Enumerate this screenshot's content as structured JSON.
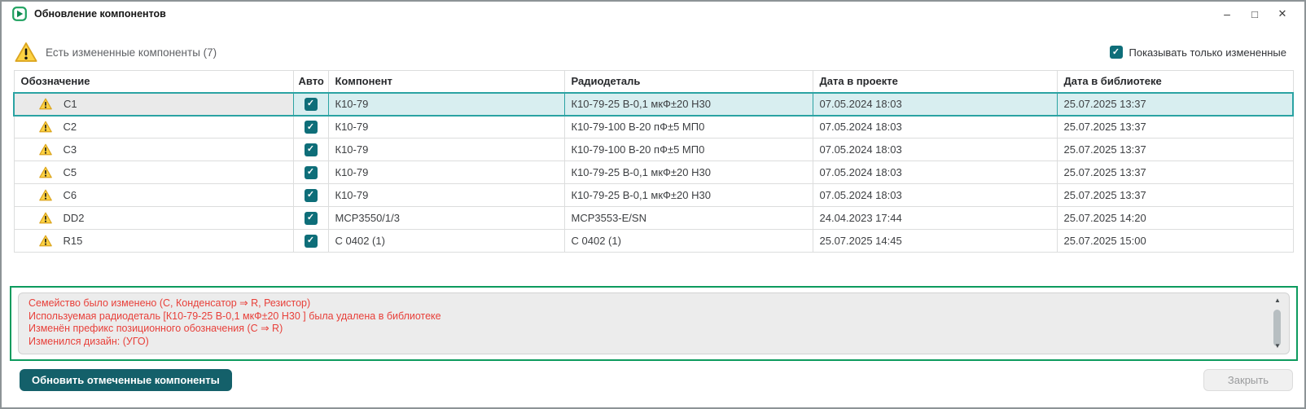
{
  "window": {
    "title": "Обновление компонентов",
    "controls": {
      "minimize": "–",
      "maximize": "□",
      "close": "✕"
    }
  },
  "banner": {
    "text": "Есть измененные компоненты (7)"
  },
  "filter_checkbox": {
    "label": "Показывать только измененные",
    "checked": true
  },
  "table": {
    "columns": [
      "Обозначение",
      "Авто",
      "Компонент",
      "Радиодеталь",
      "Дата в проекте",
      "Дата в библиотеке"
    ],
    "rows": [
      {
        "designator": "C1",
        "auto": true,
        "component": "К10-79",
        "part": "К10-79-25 В-0,1 мкФ±20 Н30",
        "project_date": "07.05.2024 18:03",
        "library_date": "25.07.2025 13:37",
        "selected": true
      },
      {
        "designator": "C2",
        "auto": true,
        "component": "К10-79",
        "part": "К10-79-100 В-20 пФ±5 МП0",
        "project_date": "07.05.2024 18:03",
        "library_date": "25.07.2025 13:37",
        "selected": false
      },
      {
        "designator": "C3",
        "auto": true,
        "component": "К10-79",
        "part": "К10-79-100 В-20 пФ±5 МП0",
        "project_date": "07.05.2024 18:03",
        "library_date": "25.07.2025 13:37",
        "selected": false
      },
      {
        "designator": "C5",
        "auto": true,
        "component": "К10-79",
        "part": "К10-79-25 В-0,1 мкФ±20 Н30",
        "project_date": "07.05.2024 18:03",
        "library_date": "25.07.2025 13:37",
        "selected": false
      },
      {
        "designator": "C6",
        "auto": true,
        "component": "К10-79",
        "part": "К10-79-25 В-0,1 мкФ±20 Н30",
        "project_date": "07.05.2024 18:03",
        "library_date": "25.07.2025 13:37",
        "selected": false
      },
      {
        "designator": "DD2",
        "auto": true,
        "component": "MCP3550/1/3",
        "part": "MCP3553-E/SN",
        "project_date": "24.04.2023 17:44",
        "library_date": "25.07.2025 14:20",
        "selected": false
      },
      {
        "designator": "R15",
        "auto": true,
        "component": "С 0402 (1)",
        "part": "С 0402 (1)",
        "project_date": "25.07.2025 14:45",
        "library_date": "25.07.2025 15:00",
        "selected": false
      }
    ]
  },
  "details_panel": {
    "messages": [
      "Семейство было изменено (С, Конденсатор ⇒ R, Резистор)",
      "Используемая радиодеталь [К10-79-25 В-0,1 мкФ±20 Н30 ] была удалена в библиотеке",
      "Изменён префикс позиционного обозначения (С ⇒ R)",
      "Изменился дизайн: (УГО)"
    ]
  },
  "footer": {
    "update_button": "Обновить отмеченные компоненты",
    "close_button": "Закрыть"
  },
  "icons": {
    "checkmark": "✓",
    "scroll_up": "▲",
    "scroll_down": "▼"
  },
  "colors": {
    "accent_teal": "#0e6e79",
    "button_teal": "#14606a",
    "selection_border": "#2ba3a3",
    "selection_bg": "#d8eef0",
    "panel_border_green": "#0d9b5e",
    "error_red": "#e8403a",
    "warning_yellow": "#fdd243"
  }
}
